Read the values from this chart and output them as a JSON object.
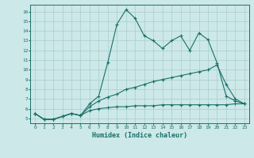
{
  "xlabel": "Humidex (Indice chaleur)",
  "bg_color": "#cce8e8",
  "grid_color": "#aacccc",
  "line_color": "#1a7068",
  "xlim": [
    -0.5,
    23.5
  ],
  "ylim": [
    4.5,
    16.7
  ],
  "xticks": [
    0,
    1,
    2,
    3,
    4,
    5,
    6,
    7,
    8,
    9,
    10,
    11,
    12,
    13,
    14,
    15,
    16,
    17,
    18,
    19,
    20,
    21,
    22,
    23
  ],
  "yticks": [
    5,
    6,
    7,
    8,
    9,
    10,
    11,
    12,
    13,
    14,
    15,
    16
  ],
  "line1_x": [
    0,
    1,
    2,
    3,
    4,
    5,
    6,
    7,
    8,
    9,
    10,
    11,
    12,
    13,
    14,
    15,
    16,
    17,
    18,
    19,
    20,
    21,
    22,
    23
  ],
  "line1_y": [
    5.5,
    4.9,
    4.9,
    5.2,
    5.5,
    5.3,
    5.8,
    6.0,
    6.1,
    6.2,
    6.2,
    6.3,
    6.3,
    6.3,
    6.4,
    6.4,
    6.4,
    6.4,
    6.4,
    6.4,
    6.4,
    6.4,
    6.5,
    6.5
  ],
  "line2_x": [
    0,
    1,
    2,
    3,
    4,
    5,
    6,
    7,
    8,
    9,
    10,
    11,
    12,
    13,
    14,
    15,
    16,
    17,
    18,
    19,
    20,
    21,
    22,
    23
  ],
  "line2_y": [
    5.5,
    4.9,
    4.9,
    5.2,
    5.5,
    5.3,
    6.2,
    6.8,
    7.2,
    7.5,
    8.0,
    8.2,
    8.5,
    8.8,
    9.0,
    9.2,
    9.4,
    9.6,
    9.8,
    10.0,
    10.5,
    8.5,
    7.0,
    6.5
  ],
  "line3_x": [
    0,
    1,
    2,
    3,
    4,
    5,
    6,
    7,
    8,
    9,
    10,
    11,
    12,
    13,
    14,
    15,
    16,
    17,
    18,
    19,
    20,
    21,
    22,
    23
  ],
  "line3_y": [
    5.5,
    4.9,
    4.9,
    5.2,
    5.5,
    5.3,
    6.5,
    7.3,
    10.8,
    14.7,
    16.2,
    15.3,
    13.5,
    13.0,
    12.2,
    13.0,
    13.5,
    12.0,
    13.8,
    13.1,
    10.7,
    7.3,
    6.8,
    6.5
  ]
}
